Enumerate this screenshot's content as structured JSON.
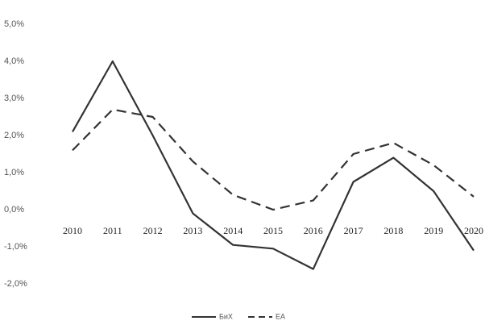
{
  "chart_data": {
    "type": "line",
    "categories": [
      "2010",
      "2011",
      "2012",
      "2013",
      "2014",
      "2015",
      "2016",
      "2017",
      "2018",
      "2019",
      "2020"
    ],
    "series": [
      {
        "name": "БиХ",
        "color": "#333333",
        "linestyle": "solid",
        "values": [
          2.1,
          4.0,
          2.0,
          -0.1,
          -0.95,
          -1.05,
          -1.6,
          0.75,
          1.4,
          0.5,
          -1.1
        ]
      },
      {
        "name": "EA",
        "color": "#333333",
        "linestyle": "dashed",
        "values": [
          1.6,
          2.7,
          2.5,
          1.3,
          0.4,
          0.0,
          0.25,
          1.5,
          1.8,
          1.2,
          0.35
        ]
      }
    ],
    "ylim": [
      -2,
      5
    ],
    "yticks": [
      {
        "value": -2,
        "label": "-2,0%"
      },
      {
        "value": -1,
        "label": "-1,0%"
      },
      {
        "value": 0,
        "label": "0,0%"
      },
      {
        "value": 1,
        "label": "1,0%"
      },
      {
        "value": 2,
        "label": "2,0%"
      },
      {
        "value": 3,
        "label": "3,0%"
      },
      {
        "value": 4,
        "label": "4,0%"
      },
      {
        "value": 5,
        "label": "5,0%"
      }
    ],
    "legend": "bottom"
  }
}
